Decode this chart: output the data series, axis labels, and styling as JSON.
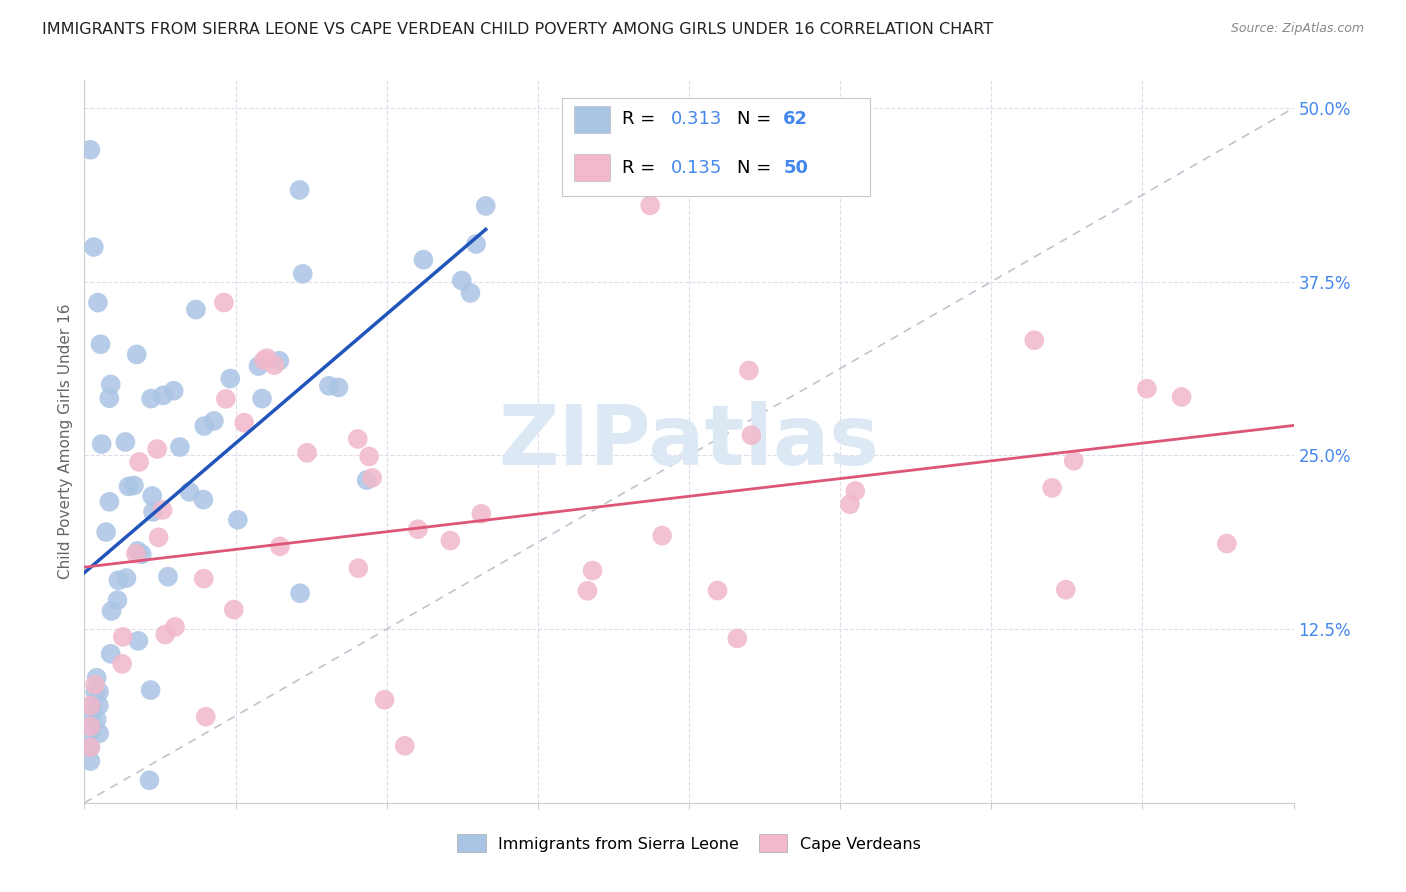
{
  "title": "IMMIGRANTS FROM SIERRA LEONE VS CAPE VERDEAN CHILD POVERTY AMONG GIRLS UNDER 16 CORRELATION CHART",
  "source": "Source: ZipAtlas.com",
  "ylabel_label": "Child Poverty Among Girls Under 16",
  "legend_label_blue": "Immigrants from Sierra Leone",
  "legend_label_pink": "Cape Verdeans",
  "blue_color": "#aac4e4",
  "pink_color": "#f2b8cb",
  "blue_line_color": "#2255bb",
  "pink_line_color": "#dd5577",
  "ref_line_color": "#b8bec8",
  "text_color": "#4488ee",
  "title_color": "#222222",
  "grid_color": "#ddddee",
  "watermark_color": "#dde8f5",
  "blue_scatter_seed": 42,
  "pink_scatter_seed": 99
}
